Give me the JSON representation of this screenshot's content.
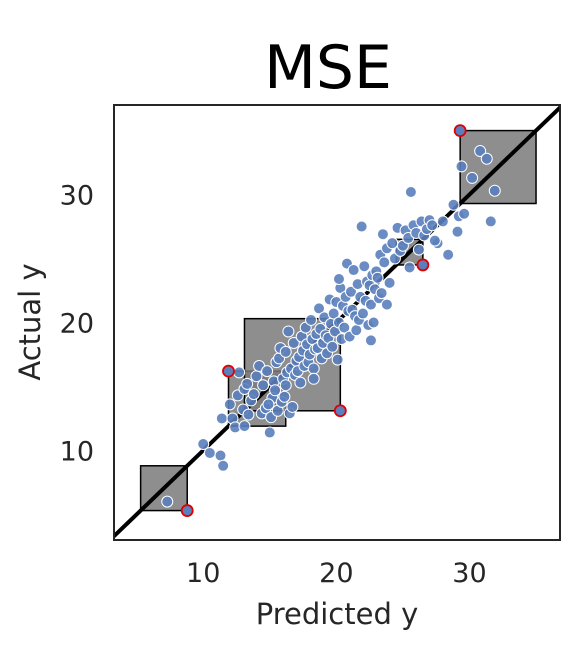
{
  "chart_data": {
    "type": "scatter",
    "title": "MSE",
    "xlabel": "Predicted y",
    "ylabel": "Actual y",
    "xlim": [
      3.3,
      36.8
    ],
    "ylim": [
      3.0,
      37.0
    ],
    "xticks": [
      10,
      20,
      30
    ],
    "yticks": [
      10,
      20,
      30
    ],
    "grid": false,
    "diagonal": "y = x",
    "points": [
      [
        7.3,
        6.0
      ],
      [
        10.0,
        10.5
      ],
      [
        10.5,
        9.8
      ],
      [
        11.3,
        9.6
      ],
      [
        11.5,
        8.8
      ],
      [
        11.4,
        12.5
      ],
      [
        12.0,
        13.6
      ],
      [
        12.2,
        12.5
      ],
      [
        12.4,
        11.8
      ],
      [
        12.6,
        14.3
      ],
      [
        12.7,
        16.1
      ],
      [
        13.0,
        13.2
      ],
      [
        13.1,
        14.8
      ],
      [
        13.3,
        15.2
      ],
      [
        13.4,
        12.8
      ],
      [
        13.6,
        13.9
      ],
      [
        13.8,
        14.4
      ],
      [
        14.0,
        15.8
      ],
      [
        14.2,
        16.6
      ],
      [
        14.4,
        12.9
      ],
      [
        14.5,
        15.1
      ],
      [
        14.7,
        13.3
      ],
      [
        14.8,
        16.2
      ],
      [
        15.0,
        11.4
      ],
      [
        15.1,
        12.6
      ],
      [
        15.2,
        14.1
      ],
      [
        15.3,
        15.4
      ],
      [
        15.4,
        14.7
      ],
      [
        15.5,
        16.9
      ],
      [
        15.6,
        13.1
      ],
      [
        15.7,
        17.2
      ],
      [
        15.8,
        18.0
      ],
      [
        15.9,
        13.8
      ],
      [
        16.0,
        15.6
      ],
      [
        16.1,
        14.2
      ],
      [
        16.2,
        17.7
      ],
      [
        16.3,
        16.1
      ],
      [
        16.4,
        19.3
      ],
      [
        16.5,
        12.9
      ],
      [
        16.6,
        16.4
      ],
      [
        16.7,
        13.4
      ],
      [
        16.8,
        18.4
      ],
      [
        16.9,
        15.9
      ],
      [
        17.0,
        17.0
      ],
      [
        17.1,
        16.2
      ],
      [
        17.2,
        17.3
      ],
      [
        17.3,
        15.3
      ],
      [
        17.4,
        18.9
      ],
      [
        17.5,
        17.8
      ],
      [
        17.6,
        16.6
      ],
      [
        17.7,
        19.6
      ],
      [
        17.8,
        18.3
      ],
      [
        17.9,
        16.9
      ],
      [
        18.0,
        17.5
      ],
      [
        18.1,
        20.2
      ],
      [
        18.2,
        18.7
      ],
      [
        18.3,
        16.4
      ],
      [
        18.4,
        17.9
      ],
      [
        18.5,
        19.1
      ],
      [
        18.6,
        18.0
      ],
      [
        18.7,
        21.1
      ],
      [
        18.8,
        19.5
      ],
      [
        18.9,
        17.2
      ],
      [
        19.0,
        18.4
      ],
      [
        19.1,
        20.4
      ],
      [
        19.2,
        19.0
      ],
      [
        19.3,
        17.6
      ],
      [
        19.4,
        18.8
      ],
      [
        19.5,
        21.8
      ],
      [
        19.6,
        19.9
      ],
      [
        19.7,
        18.1
      ],
      [
        19.8,
        20.7
      ],
      [
        19.9,
        19.3
      ],
      [
        20.0,
        21.6
      ],
      [
        20.1,
        17.1
      ],
      [
        20.2,
        20.0
      ],
      [
        20.3,
        22.7
      ],
      [
        20.4,
        18.7
      ],
      [
        20.5,
        21.3
      ],
      [
        20.6,
        19.6
      ],
      [
        20.7,
        22.0
      ],
      [
        20.8,
        24.6
      ],
      [
        20.9,
        20.9
      ],
      [
        21.0,
        18.9
      ],
      [
        21.1,
        22.4
      ],
      [
        21.2,
        21.0
      ],
      [
        21.3,
        24.1
      ],
      [
        21.4,
        20.5
      ],
      [
        21.5,
        19.4
      ],
      [
        21.6,
        23.0
      ],
      [
        21.7,
        20.2
      ],
      [
        21.8,
        22.0
      ],
      [
        21.9,
        27.5
      ],
      [
        22.0,
        20.7
      ],
      [
        22.1,
        24.4
      ],
      [
        22.2,
        21.7
      ],
      [
        22.3,
        23.2
      ],
      [
        22.4,
        19.8
      ],
      [
        22.5,
        22.9
      ],
      [
        22.6,
        21.4
      ],
      [
        22.7,
        23.7
      ],
      [
        22.8,
        20.0
      ],
      [
        22.9,
        22.6
      ],
      [
        23.0,
        24.0
      ],
      [
        23.1,
        23.5
      ],
      [
        23.2,
        21.9
      ],
      [
        23.3,
        25.3
      ],
      [
        23.4,
        22.3
      ],
      [
        23.5,
        26.9
      ],
      [
        23.6,
        24.7
      ],
      [
        23.8,
        25.8
      ],
      [
        24.0,
        23.1
      ],
      [
        24.2,
        26.2
      ],
      [
        24.4,
        25.0
      ],
      [
        24.6,
        27.4
      ],
      [
        24.8,
        25.6
      ],
      [
        25.0,
        26.0
      ],
      [
        25.2,
        27.2
      ],
      [
        25.4,
        26.6
      ],
      [
        25.6,
        30.2
      ],
      [
        25.8,
        27.6
      ],
      [
        26.0,
        27.0
      ],
      [
        26.2,
        25.7
      ],
      [
        26.4,
        27.9
      ],
      [
        26.6,
        26.8
      ],
      [
        26.8,
        27.3
      ],
      [
        27.0,
        28.0
      ],
      [
        27.2,
        27.6
      ],
      [
        27.6,
        26.2
      ],
      [
        28.0,
        27.9
      ],
      [
        28.4,
        25.3
      ],
      [
        28.8,
        29.2
      ],
      [
        29.2,
        28.3
      ],
      [
        29.4,
        32.2
      ],
      [
        29.6,
        28.5
      ],
      [
        30.2,
        31.3
      ],
      [
        30.8,
        33.4
      ],
      [
        31.3,
        32.8
      ],
      [
        31.6,
        27.9
      ],
      [
        31.9,
        30.3
      ],
      [
        29.1,
        27.1
      ],
      [
        27.4,
        26.4
      ],
      [
        22.6,
        18.6
      ],
      [
        18.3,
        15.6
      ],
      [
        16.2,
        15.1
      ],
      [
        14.9,
        13.6
      ],
      [
        13.1,
        11.9
      ],
      [
        23.8,
        21.4
      ],
      [
        25.5,
        24.3
      ],
      [
        20.2,
        23.4
      ]
    ],
    "squares": [
      {
        "label_point": [
          8.8,
          5.3
        ],
        "pred": 8.8,
        "actual": 5.3
      },
      {
        "label_point": [
          11.9,
          16.2
        ],
        "pred": 11.9,
        "actual": 16.2
      },
      {
        "label_point": [
          20.3,
          13.1
        ],
        "pred": 20.3,
        "actual": 13.1
      },
      {
        "label_point": [
          26.5,
          24.5
        ],
        "pred": 26.5,
        "actual": 24.5
      },
      {
        "label_point": [
          29.3,
          35.0
        ],
        "pred": 29.3,
        "actual": 35.0
      }
    ],
    "colors": {
      "point_fill": "#5b7fbd",
      "point_edge": "#ffffff",
      "square_fill": "#7a7a7a",
      "highlight_edge": "#e00000",
      "diagonal": "#000000",
      "frame": "#262626"
    }
  }
}
